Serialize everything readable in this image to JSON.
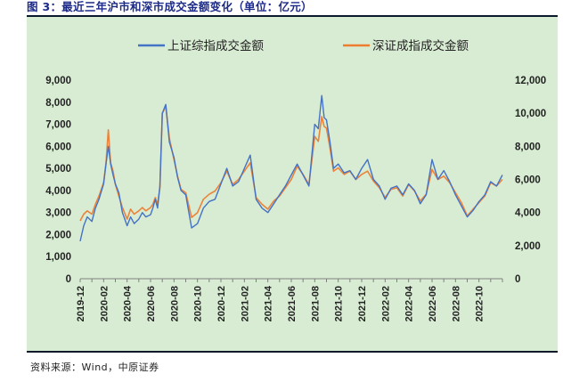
{
  "figure": {
    "title": "图 3：最近三年沪市和深市成交金额变化（单位：亿元）",
    "source": "资料来源：Wind，中原证券"
  },
  "chart_data": {
    "type": "line",
    "title": "",
    "x_tick_labels": [
      "2019-12",
      "2020-02",
      "2020-04",
      "2020-06",
      "2020-08",
      "2020-10",
      "2020-12",
      "2021-02",
      "2021-04",
      "2021-06",
      "2021-08",
      "2021-10",
      "2021-12",
      "2022-02",
      "2022-04",
      "2022-06",
      "2022-08",
      "2022-10"
    ],
    "left_axis": {
      "ticks": [
        0,
        1000,
        2000,
        3000,
        4000,
        5000,
        6000,
        7000,
        8000,
        9000
      ],
      "tick_labels": [
        "0",
        "1,000",
        "2,000",
        "3,000",
        "4,000",
        "5,000",
        "6,000",
        "7,000",
        "8,000",
        "9,000"
      ],
      "ylim": [
        0,
        9000
      ]
    },
    "right_axis": {
      "ticks": [
        0,
        2000,
        4000,
        6000,
        8000,
        10000,
        12000
      ],
      "tick_labels": [
        "0",
        "2,000",
        "4,000",
        "6,000",
        "8,000",
        "10,000",
        "12,000"
      ],
      "ylim": [
        0,
        12000
      ]
    },
    "x_months": 37,
    "legend_position": "top-center",
    "series": [
      {
        "name": "上证综指成交金额",
        "axis": "left",
        "color": "#4472c4",
        "x": [
          0,
          0.3,
          0.6,
          1,
          1.3,
          1.6,
          2,
          2.2,
          2.4,
          2.6,
          2.8,
          3,
          3.3,
          3.6,
          4,
          4.3,
          4.6,
          5,
          5.3,
          5.6,
          6,
          6.2,
          6.4,
          6.6,
          6.8,
          7,
          7.3,
          7.6,
          8,
          8.3,
          8.6,
          9,
          9.5,
          10,
          10.5,
          11,
          11.5,
          12,
          12.5,
          13,
          13.5,
          14,
          14.5,
          15,
          15.5,
          16,
          16.5,
          17,
          17.5,
          18,
          18.5,
          19,
          19.5,
          20,
          20.3,
          20.6,
          20.8,
          21,
          21.3,
          21.6,
          22,
          22.5,
          23,
          23.5,
          24,
          24.5,
          25,
          25.5,
          26,
          26.5,
          27,
          27.5,
          28,
          28.5,
          29,
          29.5,
          30,
          30.5,
          31,
          31.5,
          32,
          32.5,
          33,
          33.5,
          34,
          34.5,
          35,
          35.5,
          36
        ],
        "values": [
          1700,
          2400,
          2800,
          2600,
          3200,
          3600,
          4300,
          5200,
          6000,
          5200,
          4700,
          4300,
          3900,
          3000,
          2400,
          2800,
          2500,
          2700,
          3000,
          2800,
          2900,
          3200,
          3600,
          3200,
          4200,
          7500,
          7900,
          6200,
          5500,
          4600,
          4000,
          3800,
          2300,
          2500,
          3200,
          3500,
          3600,
          4300,
          5000,
          4200,
          4400,
          5000,
          5600,
          3600,
          3200,
          3000,
          3400,
          3800,
          4200,
          4700,
          5200,
          4700,
          4200,
          7000,
          6800,
          8300,
          7300,
          7200,
          6200,
          5000,
          5200,
          4800,
          4900,
          4500,
          5000,
          5400,
          4500,
          4200,
          3600,
          4100,
          4200,
          3800,
          4300,
          4000,
          3400,
          3800,
          5400,
          4500,
          4900,
          4400,
          3800,
          3300,
          2800,
          3100,
          3500,
          3800,
          4400,
          4200,
          4700
        ]
      },
      {
        "name": "深证成指成交金额",
        "axis": "right",
        "color": "#ed7d31",
        "x": [
          0,
          0.3,
          0.6,
          1,
          1.3,
          1.6,
          2,
          2.2,
          2.4,
          2.6,
          2.8,
          3,
          3.3,
          3.6,
          4,
          4.3,
          4.6,
          5,
          5.3,
          5.6,
          6,
          6.2,
          6.4,
          6.6,
          6.8,
          7,
          7.3,
          7.6,
          8,
          8.3,
          8.6,
          9,
          9.5,
          10,
          10.5,
          11,
          11.5,
          12,
          12.5,
          13,
          13.5,
          14,
          14.5,
          15,
          15.5,
          16,
          16.5,
          17,
          17.5,
          18,
          18.5,
          19,
          19.5,
          20,
          20.3,
          20.6,
          20.8,
          21,
          21.3,
          21.6,
          22,
          22.5,
          23,
          23.5,
          24,
          24.5,
          25,
          25.5,
          26,
          26.5,
          27,
          27.5,
          28,
          28.5,
          29,
          29.5,
          30,
          30.5,
          31,
          31.5,
          32,
          32.5,
          33,
          33.5,
          34,
          34.5,
          35,
          35.5,
          36
        ],
        "values": [
          3500,
          3900,
          4100,
          3900,
          4500,
          5000,
          5800,
          7000,
          9000,
          7000,
          6500,
          5700,
          5000,
          4300,
          3600,
          4200,
          3900,
          4100,
          4300,
          4100,
          4300,
          4500,
          4900,
          4500,
          5500,
          10000,
          10400,
          8500,
          7200,
          6200,
          5400,
          5200,
          3700,
          4000,
          4800,
          5100,
          5300,
          5800,
          6500,
          5700,
          6000,
          6500,
          7000,
          4900,
          4500,
          4200,
          4700,
          5000,
          5500,
          6000,
          6800,
          6300,
          5700,
          8600,
          8300,
          9800,
          9200,
          9100,
          7900,
          6500,
          6700,
          6300,
          6500,
          6000,
          6300,
          6500,
          5900,
          5500,
          4900,
          5400,
          5500,
          5000,
          5700,
          5300,
          4700,
          5100,
          6600,
          6000,
          6200,
          5800,
          5200,
          4600,
          3800,
          4200,
          4600,
          5000,
          5800,
          5600,
          6000
        ]
      }
    ]
  }
}
